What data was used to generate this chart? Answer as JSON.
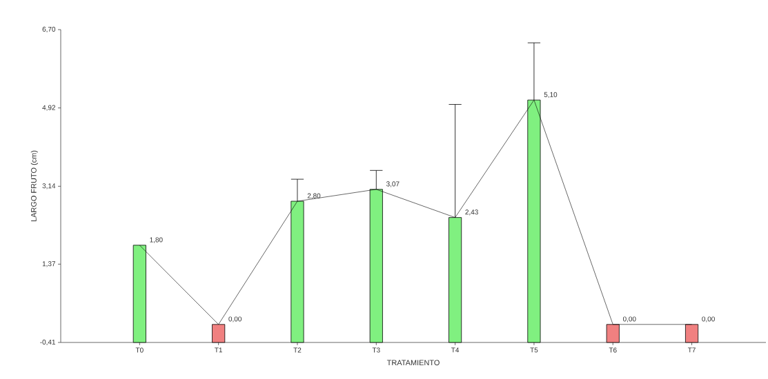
{
  "chart_data": {
    "type": "bar",
    "xlabel": "TRATAMIENTO",
    "ylabel": "LARGO FRUTO (cm)",
    "categories": [
      "T0",
      "T1",
      "T2",
      "T3",
      "T4",
      "T5",
      "T6",
      "T7"
    ],
    "ylim": [
      -0.41,
      6.7
    ],
    "yticks": [
      {
        "value": -0.41,
        "label": "-0,41"
      },
      {
        "value": 1.37,
        "label": "1,37"
      },
      {
        "value": 3.14,
        "label": "3,14"
      },
      {
        "value": 4.92,
        "label": "4,92"
      },
      {
        "value": 6.7,
        "label": "6,70"
      }
    ],
    "series": [
      {
        "values": [
          2.21,
          0.41,
          3.21,
          3.48,
          2.84,
          5.51,
          0.41,
          0.41
        ],
        "base": [
          -0.41,
          -0.41,
          -0.41,
          -0.41,
          -0.41,
          -0.41,
          -0.41,
          -0.41
        ],
        "colors": [
          "#80f080",
          "#f08080",
          "#80f080",
          "#80f080",
          "#80f080",
          "#80f080",
          "#f08080",
          "#f08080"
        ]
      },
      {
        "type": "line",
        "color": "#000000",
        "values": [
          1.8,
          0.0,
          2.8,
          3.07,
          2.43,
          5.1,
          0.0,
          0.0
        ],
        "errors": [
          null,
          null,
          [
            2.8,
            3.3
          ],
          [
            3.07,
            3.5
          ],
          [
            2.43,
            5.0
          ],
          [
            5.1,
            6.4
          ],
          null,
          null
        ],
        "value_labels": [
          "1,80",
          "0,00",
          "2,80",
          "3,07",
          "2,43",
          "5,10",
          "0,00",
          "0,00"
        ]
      }
    ]
  }
}
